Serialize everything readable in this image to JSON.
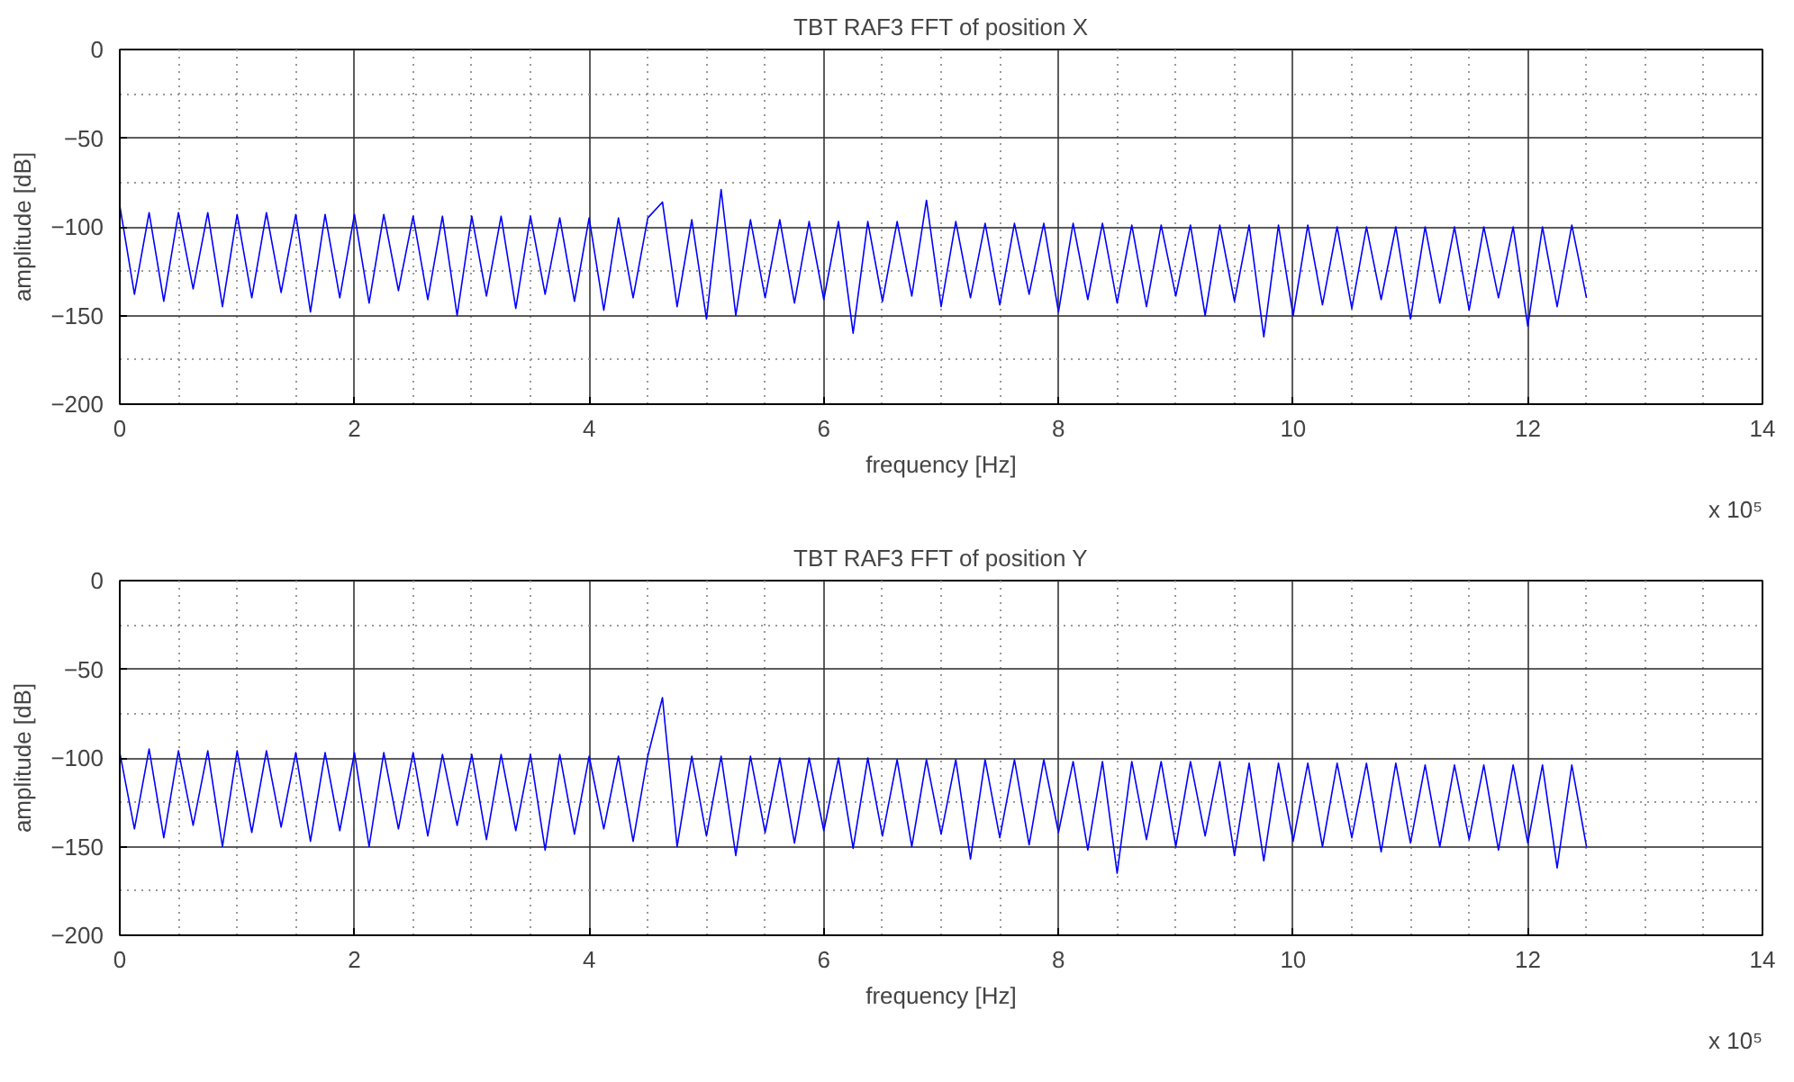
{
  "chart_data": [
    {
      "type": "line",
      "title": "TBT RAF3 FFT of position X",
      "xlabel": "frequency [Hz]",
      "ylabel": "amplitude [dB]",
      "annotations": [
        "x 10⁵"
      ],
      "xlim": [
        0,
        14
      ],
      "xticks": [
        0,
        2,
        4,
        6,
        8,
        10,
        12,
        14
      ],
      "ylim": [
        -200,
        0
      ],
      "yticks": [
        -200,
        -150,
        -100,
        -50,
        0
      ],
      "grid": true,
      "marker": "none",
      "line_style": "solid",
      "series": [
        {
          "color": "#0000ff",
          "x": [
            0,
            0.125,
            0.25,
            0.375,
            0.5,
            0.625,
            0.75,
            0.875,
            1,
            1.125,
            1.25,
            1.375,
            1.5,
            1.625,
            1.75,
            1.875,
            2,
            2.125,
            2.25,
            2.375,
            2.5,
            2.625,
            2.75,
            2.875,
            3,
            3.125,
            3.25,
            3.375,
            3.5,
            3.625,
            3.75,
            3.875,
            4,
            4.125,
            4.25,
            4.375,
            4.5,
            4.625,
            4.75,
            4.875,
            5,
            5.125,
            5.25,
            5.375,
            5.5,
            5.625,
            5.75,
            5.875,
            6,
            6.125,
            6.25,
            6.375,
            6.5,
            6.625,
            6.75,
            6.875,
            7,
            7.125,
            7.25,
            7.375,
            7.5,
            7.625,
            7.75,
            7.875,
            8,
            8.125,
            8.25,
            8.375,
            8.5,
            8.625,
            8.75,
            8.875,
            9,
            9.125,
            9.25,
            9.375,
            9.5,
            9.625,
            9.75,
            9.875,
            10,
            10.125,
            10.25,
            10.375,
            10.5,
            10.625,
            10.75,
            10.875,
            11,
            11.125,
            11.25,
            11.375,
            11.5,
            11.625,
            11.75,
            11.875,
            12,
            12.125,
            12.25,
            12.375,
            12.5
          ],
          "values": [
            -88,
            -138,
            -92,
            -142,
            -92,
            -135,
            -92,
            -145,
            -93,
            -140,
            -92,
            -137,
            -93,
            -148,
            -93,
            -140,
            -93,
            -143,
            -93,
            -136,
            -94,
            -141,
            -94,
            -150,
            -94,
            -139,
            -94,
            -146,
            -94,
            -138,
            -95,
            -142,
            -95,
            -147,
            -95,
            -140,
            -95,
            -86,
            -145,
            -96,
            -152,
            -79,
            -150,
            -96,
            -140,
            -96,
            -143,
            -97,
            -141,
            -97,
            -160,
            -97,
            -142,
            -97,
            -139,
            -85,
            -145,
            -97,
            -140,
            -98,
            -144,
            -98,
            -138,
            -98,
            -148,
            -98,
            -141,
            -98,
            -143,
            -99,
            -145,
            -99,
            -139,
            -99,
            -150,
            -99,
            -142,
            -99,
            -162,
            -99,
            -150,
            -99,
            -144,
            -100,
            -146,
            -100,
            -141,
            -100,
            -152,
            -100,
            -143,
            -100,
            -147,
            -100,
            -140,
            -100,
            -156,
            -100,
            -145,
            -99,
            -140
          ]
        }
      ]
    },
    {
      "type": "line",
      "title": "TBT RAF3 FFT of position Y",
      "xlabel": "frequency [Hz]",
      "ylabel": "amplitude [dB]",
      "annotations": [
        "x 10⁵"
      ],
      "xlim": [
        0,
        14
      ],
      "xticks": [
        0,
        2,
        4,
        6,
        8,
        10,
        12,
        14
      ],
      "ylim": [
        -200,
        0
      ],
      "yticks": [
        -200,
        -150,
        -100,
        -50,
        0
      ],
      "grid": true,
      "marker": "none",
      "line_style": "solid",
      "series": [
        {
          "color": "#0000ff",
          "x": [
            0,
            0.125,
            0.25,
            0.375,
            0.5,
            0.625,
            0.75,
            0.875,
            1,
            1.125,
            1.25,
            1.375,
            1.5,
            1.625,
            1.75,
            1.875,
            2,
            2.125,
            2.25,
            2.375,
            2.5,
            2.625,
            2.75,
            2.875,
            3,
            3.125,
            3.25,
            3.375,
            3.5,
            3.625,
            3.75,
            3.875,
            4,
            4.125,
            4.25,
            4.375,
            4.5,
            4.625,
            4.75,
            4.875,
            5,
            5.125,
            5.25,
            5.375,
            5.5,
            5.625,
            5.75,
            5.875,
            6,
            6.125,
            6.25,
            6.375,
            6.5,
            6.625,
            6.75,
            6.875,
            7,
            7.125,
            7.25,
            7.375,
            7.5,
            7.625,
            7.75,
            7.875,
            8,
            8.125,
            8.25,
            8.375,
            8.5,
            8.625,
            8.75,
            8.875,
            9,
            9.125,
            9.25,
            9.375,
            9.5,
            9.625,
            9.75,
            9.875,
            10,
            10.125,
            10.25,
            10.375,
            10.5,
            10.625,
            10.75,
            10.875,
            11,
            11.125,
            11.25,
            11.375,
            11.5,
            11.625,
            11.75,
            11.875,
            12,
            12.125,
            12.25,
            12.375,
            12.5
          ],
          "values": [
            -97,
            -140,
            -95,
            -145,
            -96,
            -138,
            -96,
            -150,
            -96,
            -142,
            -96,
            -139,
            -97,
            -147,
            -97,
            -141,
            -97,
            -150,
            -97,
            -140,
            -97,
            -144,
            -98,
            -138,
            -98,
            -146,
            -98,
            -141,
            -98,
            -152,
            -98,
            -143,
            -99,
            -140,
            -99,
            -147,
            -99,
            -66,
            -150,
            -99,
            -144,
            -99,
            -155,
            -99,
            -142,
            -100,
            -148,
            -100,
            -141,
            -100,
            -151,
            -100,
            -144,
            -101,
            -150,
            -101,
            -143,
            -101,
            -157,
            -101,
            -145,
            -101,
            -149,
            -101,
            -142,
            -102,
            -152,
            -102,
            -165,
            -102,
            -146,
            -102,
            -150,
            -102,
            -144,
            -102,
            -155,
            -103,
            -158,
            -103,
            -147,
            -103,
            -150,
            -103,
            -145,
            -103,
            -153,
            -103,
            -148,
            -104,
            -150,
            -104,
            -146,
            -104,
            -152,
            -104,
            -148,
            -104,
            -162,
            -104,
            -150
          ]
        }
      ]
    }
  ]
}
